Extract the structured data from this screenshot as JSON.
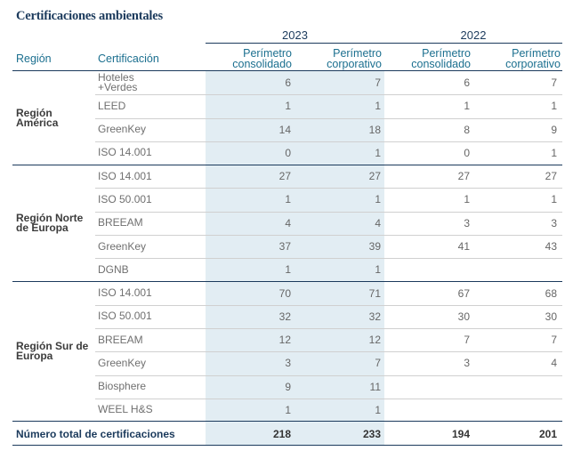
{
  "title": "Certificaciones ambientales",
  "years": [
    "2023",
    "2022"
  ],
  "headers": {
    "region": "Región",
    "certification": "Certificación",
    "col1": [
      "Perímetro",
      "consolidado"
    ],
    "col2": [
      "Perímetro",
      "corporativo"
    ],
    "col3": [
      "Perímetro",
      "consolidado"
    ],
    "col4": [
      "Perímetro",
      "corporativo"
    ]
  },
  "regions": [
    {
      "name": [
        "Región",
        "América"
      ],
      "rows": [
        {
          "cert": [
            "Hoteles",
            "+Verdes"
          ],
          "values": [
            "6",
            "7",
            "6",
            "7"
          ]
        },
        {
          "cert": [
            "LEED"
          ],
          "values": [
            "1",
            "1",
            "1",
            "1"
          ]
        },
        {
          "cert": [
            "GreenKey"
          ],
          "values": [
            "14",
            "18",
            "8",
            "9"
          ]
        },
        {
          "cert": [
            "ISO 14.001"
          ],
          "values": [
            "0",
            "1",
            "0",
            "1"
          ]
        }
      ]
    },
    {
      "name": [
        "Región Norte",
        "de Europa"
      ],
      "rows": [
        {
          "cert": [
            "ISO 14.001"
          ],
          "values": [
            "27",
            "27",
            "27",
            "27"
          ]
        },
        {
          "cert": [
            "ISO 50.001"
          ],
          "values": [
            "1",
            "1",
            "1",
            "1"
          ]
        },
        {
          "cert": [
            "BREEAM"
          ],
          "values": [
            "4",
            "4",
            "3",
            "3"
          ]
        },
        {
          "cert": [
            "GreenKey"
          ],
          "values": [
            "37",
            "39",
            "41",
            "43"
          ]
        },
        {
          "cert": [
            "DGNB"
          ],
          "values": [
            "1",
            "1",
            "",
            ""
          ]
        }
      ]
    },
    {
      "name": [
        "Región Sur de",
        "Europa"
      ],
      "rows": [
        {
          "cert": [
            "ISO 14.001"
          ],
          "values": [
            "70",
            "71",
            "67",
            "68"
          ]
        },
        {
          "cert": [
            "ISO 50.001"
          ],
          "values": [
            "32",
            "32",
            "30",
            "30"
          ]
        },
        {
          "cert": [
            "BREEAM"
          ],
          "values": [
            "12",
            "12",
            "7",
            "7"
          ]
        },
        {
          "cert": [
            "GreenKey"
          ],
          "values": [
            "3",
            "7",
            "3",
            "4"
          ]
        },
        {
          "cert": [
            "Biosphere"
          ],
          "values": [
            "9",
            "11",
            "",
            ""
          ]
        },
        {
          "cert": [
            "WEEL H&S"
          ],
          "values": [
            "1",
            "1",
            "",
            ""
          ]
        }
      ]
    }
  ],
  "total": {
    "label": "Número total de certificaciones",
    "values": [
      "218",
      "233",
      "194",
      "201"
    ]
  },
  "colors": {
    "navy": "#1b3a5c",
    "teal": "#1b6f8f",
    "shade": "#e2edf3",
    "rowline": "#d0d0d0"
  }
}
